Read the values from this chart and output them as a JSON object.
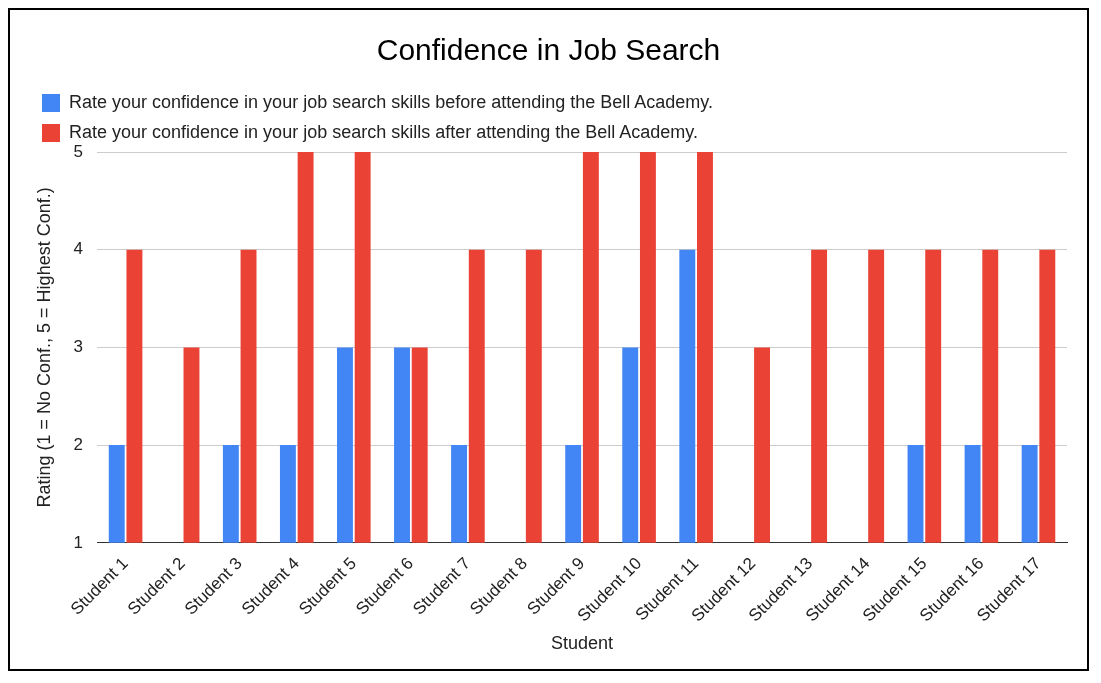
{
  "chart_data": {
    "type": "bar",
    "title": "Confidence in Job Search",
    "xlabel": "Student",
    "ylabel": "Rating (1 = No Conf., 5 = Highest Conf.)",
    "categories": [
      "Student 1",
      "Student 2",
      "Student 3",
      "Student 4",
      "Student 5",
      "Student 6",
      "Student 7",
      "Student 8",
      "Student 9",
      "Student 10",
      "Student 11",
      "Student 12",
      "Student 13",
      "Student 14",
      "Student 15",
      "Student 16",
      "Student 17"
    ],
    "series": [
      {
        "name": "Rate your confidence in your job search skills before attending the Bell Academy.",
        "color": "#4285f4",
        "values": [
          2,
          null,
          2,
          2,
          3,
          3,
          2,
          null,
          2,
          3,
          4,
          null,
          null,
          null,
          2,
          2,
          2
        ]
      },
      {
        "name": "Rate your confidence in your job search skills after attending the Bell Academy.",
        "color": "#ea4335",
        "values": [
          4,
          3,
          4,
          5,
          5,
          3,
          4,
          4,
          5,
          5,
          5,
          3,
          4,
          4,
          4,
          4,
          4
        ]
      }
    ],
    "ylim": [
      1,
      5
    ],
    "yticks": [
      1,
      2,
      3,
      4,
      5
    ],
    "grid": "y",
    "legend": "top left"
  }
}
